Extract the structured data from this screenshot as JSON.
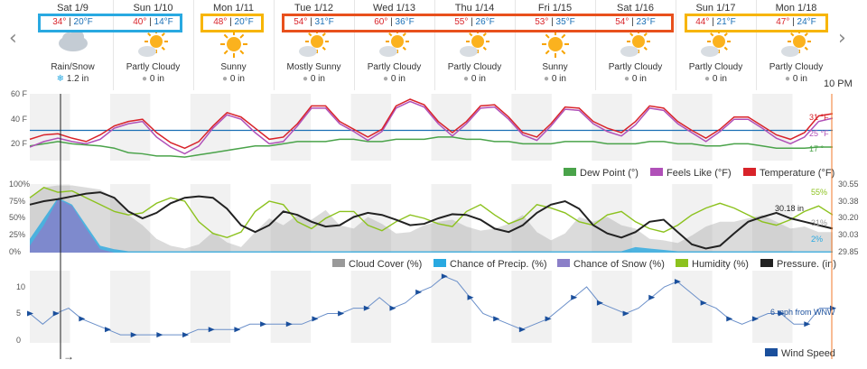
{
  "forecast_days": [
    {
      "day": "Sat 1/9",
      "hi": "34°",
      "lo": "20°F",
      "cond": "Rain/Snow",
      "precip": "1.2 in",
      "icon": "rain-snow-icon"
    },
    {
      "day": "Sun 1/10",
      "hi": "40°",
      "lo": "14°F",
      "cond": "Partly Cloudy",
      "precip": "0 in",
      "icon": "partly-cloudy-icon"
    },
    {
      "day": "Mon 1/11",
      "hi": "48°",
      "lo": "20°F",
      "cond": "Sunny",
      "precip": "0 in",
      "icon": "sunny-icon"
    },
    {
      "day": "Tue 1/12",
      "hi": "54°",
      "lo": "31°F",
      "cond": "Mostly Sunny",
      "precip": "0 in",
      "icon": "partly-cloudy-icon"
    },
    {
      "day": "Wed 1/13",
      "hi": "60°",
      "lo": "36°F",
      "cond": "Partly Cloudy",
      "precip": "0 in",
      "icon": "partly-cloudy-icon"
    },
    {
      "day": "Thu 1/14",
      "hi": "55°",
      "lo": "26°F",
      "cond": "Partly Cloudy",
      "precip": "0 in",
      "icon": "partly-cloudy-icon"
    },
    {
      "day": "Fri 1/15",
      "hi": "53°",
      "lo": "35°F",
      "cond": "Sunny",
      "precip": "0 in",
      "icon": "sunny-icon"
    },
    {
      "day": "Sat 1/16",
      "hi": "54°",
      "lo": "23°F",
      "cond": "Partly Cloudy",
      "precip": "0 in",
      "icon": "partly-cloudy-icon"
    },
    {
      "day": "Sun 1/17",
      "hi": "44°",
      "lo": "21°F",
      "cond": "Partly Cloudy",
      "precip": "0 in",
      "icon": "partly-cloudy-icon"
    },
    {
      "day": "Mon 1/18",
      "hi": "47°",
      "lo": "24°F",
      "cond": "Partly Cloudy",
      "precip": "0 in",
      "icon": "partly-cloudy-icon"
    }
  ],
  "highlight_colors": {
    "blue": "#29a9e1",
    "yellow": "#f7b500",
    "red": "#e8501c"
  },
  "nav": {
    "prev": "‹",
    "next": "›"
  },
  "time_marker": "10 PM",
  "bottom_arrow": "→",
  "chart_data": [
    {
      "type": "line",
      "name": "temperature",
      "yticks": [
        "60 F",
        "40 F",
        "20 F"
      ],
      "ylim": [
        0,
        60
      ],
      "series": [
        {
          "name": "Temperature (°F)",
          "color": "#d8232a",
          "values": [
            24,
            28,
            29,
            25,
            22,
            28,
            36,
            40,
            42,
            30,
            21,
            16,
            22,
            36,
            48,
            44,
            34,
            24,
            26,
            38,
            54,
            54,
            40,
            33,
            26,
            33,
            54,
            60,
            55,
            40,
            30,
            40,
            54,
            55,
            44,
            30,
            26,
            38,
            53,
            52,
            40,
            34,
            30,
            40,
            54,
            52,
            40,
            32,
            25,
            33,
            44,
            44,
            36,
            28,
            24,
            30,
            45,
            47
          ]
        },
        {
          "name": "Feels Like (°F)",
          "color": "#b050b8",
          "values": [
            17,
            22,
            25,
            22,
            20,
            24,
            34,
            38,
            40,
            26,
            17,
            11,
            18,
            34,
            46,
            42,
            30,
            20,
            22,
            36,
            52,
            52,
            38,
            31,
            23,
            31,
            52,
            58,
            53,
            38,
            27,
            38,
            52,
            53,
            42,
            28,
            23,
            36,
            51,
            50,
            38,
            31,
            27,
            37,
            52,
            50,
            38,
            30,
            22,
            31,
            42,
            42,
            34,
            25,
            20,
            26,
            40,
            43
          ]
        },
        {
          "name": "Dew Point (°)",
          "color": "#4aa34a",
          "values": [
            18,
            20,
            22,
            20,
            19,
            18,
            16,
            12,
            11,
            9,
            9,
            8,
            10,
            12,
            14,
            16,
            18,
            18,
            20,
            22,
            22,
            22,
            24,
            24,
            22,
            22,
            24,
            24,
            24,
            26,
            26,
            24,
            24,
            22,
            22,
            20,
            20,
            20,
            22,
            22,
            22,
            20,
            20,
            20,
            22,
            22,
            20,
            20,
            18,
            18,
            20,
            20,
            18,
            16,
            16,
            16,
            17,
            17
          ]
        }
      ],
      "reference_line": {
        "value": 32,
        "color": "#1a6fb5"
      },
      "end_labels": [
        "31 °F",
        "25 °F",
        "17 °"
      ],
      "legend": [
        "Dew Point (°)",
        "Feels Like (°F)",
        "Temperature (°F)"
      ]
    },
    {
      "type": "area",
      "name": "sky",
      "yticks": [
        "100%",
        "75%",
        "50%",
        "25%",
        "0%"
      ],
      "right_ticks": [
        "30.55",
        "30.38",
        "30.20",
        "30.03",
        "29.85"
      ],
      "series": [
        {
          "name": "Cloud Cover (%)",
          "color": "#999999",
          "values": [
            80,
            95,
            98,
            98,
            95,
            92,
            80,
            55,
            40,
            20,
            10,
            6,
            12,
            30,
            15,
            8,
            30,
            50,
            40,
            55,
            48,
            62,
            40,
            35,
            52,
            42,
            28,
            30,
            40,
            45,
            48,
            38,
            32,
            35,
            42,
            55,
            30,
            18,
            28,
            52,
            45,
            52,
            40,
            35,
            20,
            18,
            14,
            25,
            38,
            45,
            45,
            50,
            55,
            45,
            35,
            38,
            30,
            30
          ]
        },
        {
          "name": "Chance of Precip. (%)",
          "color": "#29a9e1",
          "values": [
            20,
            50,
            80,
            70,
            40,
            10,
            5,
            2,
            2,
            2,
            2,
            2,
            2,
            2,
            2,
            2,
            2,
            2,
            2,
            2,
            2,
            2,
            2,
            2,
            2,
            2,
            2,
            2,
            2,
            2,
            2,
            2,
            2,
            2,
            2,
            2,
            2,
            2,
            2,
            2,
            2,
            2,
            2,
            8,
            6,
            4,
            2,
            2,
            2,
            2,
            2,
            2,
            2,
            2,
            2,
            2,
            2,
            2
          ]
        },
        {
          "name": "Chance of Snow (%)",
          "color": "#8b7fc8",
          "values": [
            10,
            40,
            78,
            68,
            35,
            5,
            0,
            0,
            0,
            0,
            0,
            0,
            0,
            0,
            0,
            0,
            0,
            0,
            0,
            0,
            0,
            0,
            0,
            0,
            0,
            0,
            0,
            0,
            0,
            0,
            0,
            0,
            0,
            0,
            0,
            0,
            0,
            0,
            0,
            0,
            0,
            0,
            0,
            0,
            0,
            0,
            0,
            0,
            0,
            0,
            0,
            0,
            0,
            0,
            0,
            0,
            0,
            0
          ]
        },
        {
          "name": "Humidity (%)",
          "color": "#8cc21e",
          "values": [
            80,
            95,
            88,
            90,
            80,
            70,
            60,
            55,
            58,
            72,
            80,
            75,
            45,
            28,
            22,
            30,
            60,
            75,
            70,
            45,
            35,
            50,
            60,
            60,
            40,
            32,
            45,
            55,
            50,
            42,
            38,
            60,
            70,
            55,
            42,
            50,
            70,
            65,
            58,
            45,
            40,
            55,
            60,
            45,
            35,
            30,
            40,
            55,
            65,
            72,
            65,
            55,
            45,
            40,
            48,
            60,
            68,
            55
          ]
        },
        {
          "name": "Pressure. (in)",
          "color": "#222222",
          "values": [
            70,
            75,
            78,
            82,
            86,
            88,
            80,
            60,
            50,
            58,
            72,
            80,
            82,
            80,
            64,
            40,
            30,
            40,
            60,
            55,
            45,
            38,
            40,
            52,
            58,
            55,
            48,
            40,
            42,
            50,
            56,
            55,
            48,
            35,
            30,
            40,
            58,
            70,
            75,
            64,
            40,
            28,
            22,
            30,
            45,
            48,
            30,
            12,
            6,
            10,
            28,
            45,
            52,
            58,
            50,
            45,
            40,
            35
          ]
        }
      ],
      "end_labels": [
        "55%",
        "30.18 in",
        "31%",
        "2%"
      ],
      "legend": [
        "Cloud Cover (%)",
        "Chance of Precip. (%)",
        "Chance of Snow (%)",
        "Humidity (%)",
        "Pressure. (in)"
      ]
    },
    {
      "type": "line",
      "name": "wind",
      "yticks": [
        "10",
        "5",
        "0"
      ],
      "ylim": [
        0,
        13
      ],
      "series": [
        {
          "name": "Wind Speed",
          "color": "#1a4f9c",
          "values": [
            5,
            3,
            5,
            6,
            4,
            3,
            2,
            1,
            1,
            1,
            1,
            1,
            1,
            2,
            2,
            2,
            2,
            3,
            3,
            3,
            3,
            3,
            4,
            5,
            5,
            6,
            6,
            8,
            6,
            7,
            9,
            10,
            12,
            11,
            8,
            5,
            4,
            3,
            2,
            3,
            4,
            6,
            8,
            10,
            7,
            6,
            5,
            6,
            8,
            10,
            11,
            9,
            7,
            6,
            4,
            3,
            4,
            5,
            5,
            3,
            3,
            6,
            6
          ]
        }
      ],
      "end_labels": [
        "6 mph from WNW"
      ],
      "legend": [
        "Wind Speed"
      ]
    }
  ]
}
